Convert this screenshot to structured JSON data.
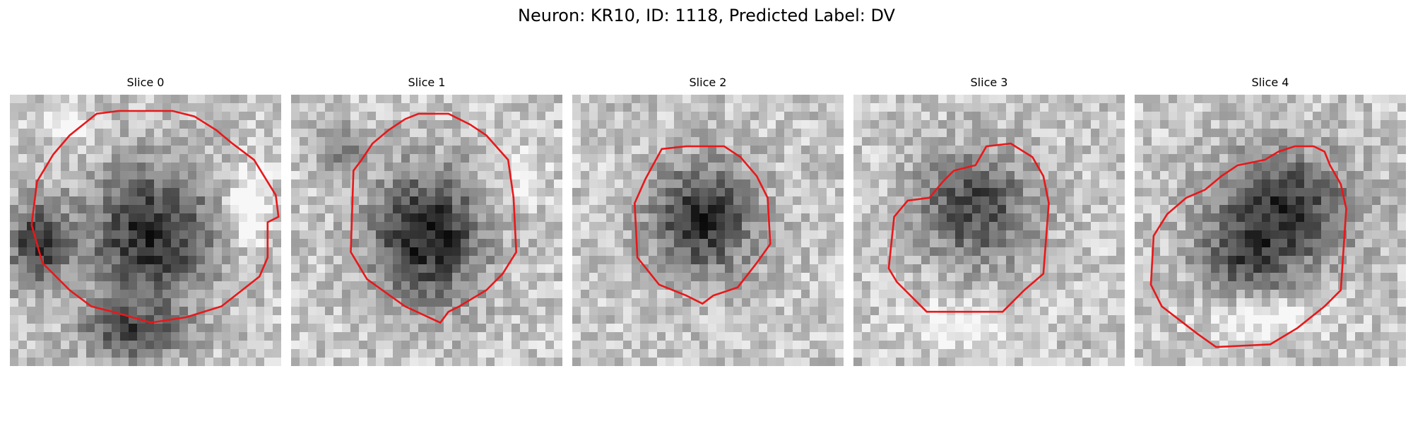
{
  "figure": {
    "title": "Neuron: KR10, ID: 1118, Predicted Label: DV"
  },
  "panels": [
    {
      "title": "Slice 0"
    },
    {
      "title": "Slice 1"
    },
    {
      "title": "Slice 2"
    },
    {
      "title": "Slice 3"
    },
    {
      "title": "Slice 4"
    }
  ],
  "colors": {
    "contour": "#e8181a",
    "background": "#ffffff",
    "text": "#000000"
  },
  "image": {
    "colormap": "grayscale",
    "grid_cells": 32
  }
}
